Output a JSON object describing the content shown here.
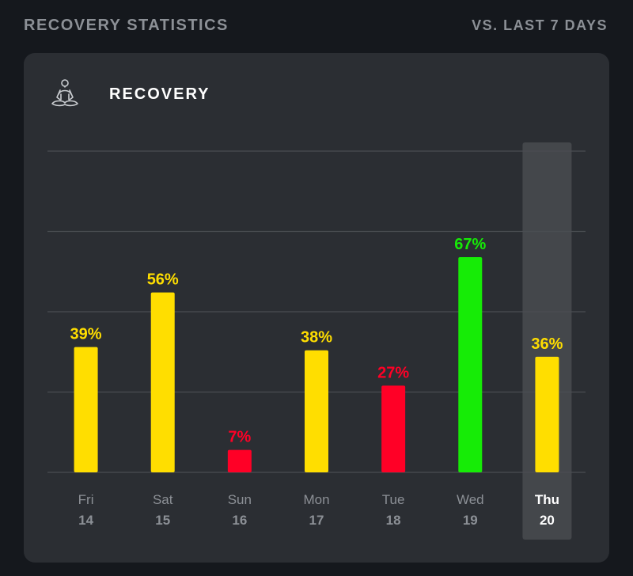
{
  "header": {
    "title": "RECOVERY STATISTICS",
    "compare_label": "VS. LAST 7 DAYS"
  },
  "card": {
    "title": "RECOVERY",
    "icon": "meditation-icon"
  },
  "colors": {
    "background": "#15181d",
    "card": "#2b2e33",
    "gridline": "#4a4d52",
    "highlight_column": "#44474b",
    "yellow": "#ffde00",
    "red": "#ff0026",
    "green": "#16ec06",
    "muted_text": "#8c9096",
    "active_text": "#ffffff"
  },
  "chart_data": {
    "type": "bar",
    "title": "RECOVERY",
    "categories": [
      {
        "day": "Fri",
        "date": "14"
      },
      {
        "day": "Sat",
        "date": "15"
      },
      {
        "day": "Sun",
        "date": "16"
      },
      {
        "day": "Mon",
        "date": "17"
      },
      {
        "day": "Tue",
        "date": "18"
      },
      {
        "day": "Wed",
        "date": "19"
      },
      {
        "day": "Thu",
        "date": "20"
      }
    ],
    "values": [
      39,
      56,
      7,
      38,
      27,
      67,
      36
    ],
    "value_labels": [
      "39%",
      "56%",
      "7%",
      "38%",
      "27%",
      "67%",
      "36%"
    ],
    "bar_colors": [
      "#ffde00",
      "#ffde00",
      "#ff0026",
      "#ffde00",
      "#ff0026",
      "#16ec06",
      "#ffde00"
    ],
    "highlighted": "Thu",
    "ylim": [
      0,
      100
    ],
    "grid": true,
    "xlabel": "",
    "ylabel": ""
  }
}
